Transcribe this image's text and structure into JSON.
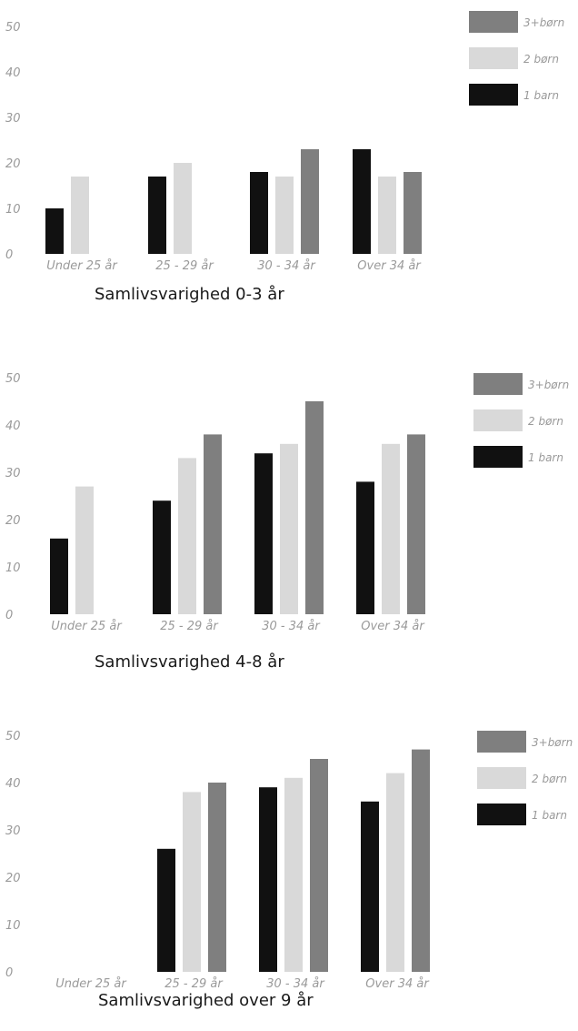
{
  "colors": {
    "1 barn": "#111111",
    "2 børn": "#d9d9d9",
    "3+børn": "#7f7f7f"
  },
  "chart_data": [
    {
      "type": "bar",
      "title": "Samlivsvarighed 0-3 år",
      "categories": [
        "Under 25 år",
        "25 - 29 år",
        "30 - 34 år",
        "Over 34 år"
      ],
      "yticks": [
        0,
        10,
        20,
        30,
        40,
        50
      ],
      "ylim": [
        0,
        50
      ],
      "legend_position": "top-right",
      "legend_order": [
        "3+børn",
        "2 børn",
        "1 barn"
      ],
      "series": [
        {
          "name": "1 barn",
          "values": [
            10,
            17,
            18,
            23
          ]
        },
        {
          "name": "2 børn",
          "values": [
            17,
            20,
            17,
            17
          ]
        },
        {
          "name": "3+børn",
          "values": [
            null,
            null,
            23,
            18
          ]
        }
      ]
    },
    {
      "type": "bar",
      "title": "Samlivsvarighed 4-8 år",
      "categories": [
        "Under 25 år",
        "25 - 29 år",
        "30 - 34 år",
        "Over 34 år"
      ],
      "yticks": [
        0,
        10,
        20,
        30,
        40,
        50
      ],
      "ylim": [
        0,
        50
      ],
      "legend_position": "top-right",
      "legend_order": [
        "3+børn",
        "2 børn",
        "1 barn"
      ],
      "series": [
        {
          "name": "1 barn",
          "values": [
            16,
            24,
            34,
            28
          ]
        },
        {
          "name": "2 børn",
          "values": [
            27,
            33,
            36,
            36
          ]
        },
        {
          "name": "3+børn",
          "values": [
            null,
            38,
            45,
            38
          ]
        }
      ]
    },
    {
      "type": "bar",
      "title": "Samlivsvarighed over 9 år",
      "categories": [
        "Under 25 år",
        "25 - 29 år",
        "30 - 34 år",
        "Over 34 år"
      ],
      "yticks": [
        0,
        10,
        20,
        30,
        40,
        50
      ],
      "ylim": [
        0,
        50
      ],
      "legend_position": "top-right",
      "legend_order": [
        "3+børn",
        "2 børn",
        "1 barn"
      ],
      "series": [
        {
          "name": "1 barn",
          "values": [
            null,
            26,
            39,
            36
          ]
        },
        {
          "name": "2 børn",
          "values": [
            null,
            38,
            41,
            42
          ]
        },
        {
          "name": "3+børn",
          "values": [
            null,
            40,
            45,
            47
          ]
        }
      ]
    }
  ]
}
